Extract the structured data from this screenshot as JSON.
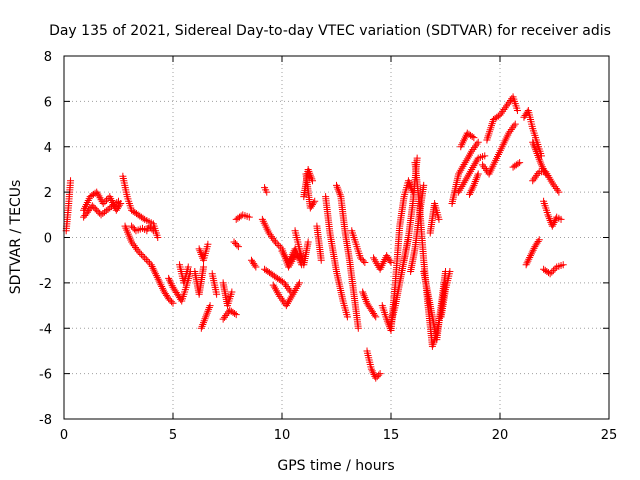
{
  "chart_data": {
    "type": "scatter",
    "title": "Day 135 of 2021, Sidereal Day-to-day VTEC variation (SDTVAR) for receiver adis",
    "xlabel": "GPS time / hours",
    "ylabel": "SDTVAR / TECUs",
    "xlim": [
      0,
      25
    ],
    "ylim": [
      -8,
      8
    ],
    "xticks": [
      0,
      5,
      10,
      15,
      20,
      25
    ],
    "yticks": [
      -8,
      -6,
      -4,
      -2,
      0,
      2,
      4,
      6,
      8
    ],
    "grid": true,
    "marker": "+",
    "color": "#ff0000",
    "series": [
      {
        "name": "SDTVAR",
        "segments": [
          {
            "x": [
              0.1,
              0.2,
              0.3
            ],
            "y": [
              0.3,
              1.3,
              2.5
            ]
          },
          {
            "x": [
              0.9,
              1.2,
              1.5,
              1.8,
              2.1,
              2.4,
              2.6
            ],
            "y": [
              1.2,
              1.8,
              2.0,
              1.5,
              1.8,
              1.2,
              1.5
            ]
          },
          {
            "x": [
              0.9,
              1.3,
              1.7,
              2.1,
              2.5
            ],
            "y": [
              0.9,
              1.4,
              1.0,
              1.3,
              1.6
            ]
          },
          {
            "x": [
              2.7,
              2.9,
              3.1,
              3.4,
              3.7,
              3.9,
              4.1,
              4.3
            ],
            "y": [
              2.7,
              1.8,
              1.2,
              1.0,
              0.8,
              0.7,
              0.6,
              0.0
            ]
          },
          {
            "x": [
              2.8,
              3.1,
              3.4,
              3.7,
              4.0,
              4.2,
              4.4,
              4.6,
              4.8,
              5.0
            ],
            "y": [
              0.5,
              -0.2,
              -0.6,
              -0.9,
              -1.2,
              -1.6,
              -2.0,
              -2.4,
              -2.7,
              -2.9
            ]
          },
          {
            "x": [
              3.1,
              3.3,
              3.6,
              3.8,
              3.9,
              4.1
            ],
            "y": [
              0.5,
              0.3,
              0.4,
              0.3,
              0.5,
              0.3
            ]
          },
          {
            "x": [
              4.8,
              5.0,
              5.2,
              5.4,
              5.6,
              5.8
            ],
            "y": [
              -1.8,
              -2.2,
              -2.5,
              -2.8,
              -2.2,
              -1.5
            ]
          },
          {
            "x": [
              5.3,
              5.5,
              5.7
            ],
            "y": [
              -1.2,
              -2.0,
              -1.3
            ]
          },
          {
            "x": [
              6.0,
              6.2,
              6.4
            ],
            "y": [
              -1.5,
              -2.5,
              -1.3
            ]
          },
          {
            "x": [
              6.2,
              6.4,
              6.6
            ],
            "y": [
              -0.5,
              -1.0,
              -0.3
            ]
          },
          {
            "x": [
              6.3,
              6.5,
              6.7
            ],
            "y": [
              -4.0,
              -3.5,
              -3.0
            ]
          },
          {
            "x": [
              6.8,
              7.0
            ],
            "y": [
              -1.6,
              -2.5
            ]
          },
          {
            "x": [
              7.3,
              7.5,
              7.7
            ],
            "y": [
              -2.0,
              -3.0,
              -2.4
            ]
          },
          {
            "x": [
              7.3,
              7.6,
              7.9
            ],
            "y": [
              -3.6,
              -3.2,
              -3.4
            ]
          },
          {
            "x": [
              7.8,
              8.0
            ],
            "y": [
              -0.2,
              -0.4
            ]
          },
          {
            "x": [
              7.9,
              8.2,
              8.5
            ],
            "y": [
              0.8,
              1.0,
              0.9
            ]
          },
          {
            "x": [
              8.6,
              8.8
            ],
            "y": [
              -1.0,
              -1.3
            ]
          },
          {
            "x": [
              9.2,
              9.3
            ],
            "y": [
              2.2,
              2.0
            ]
          },
          {
            "x": [
              9.1,
              9.4,
              9.7,
              10.0,
              10.3,
              10.6,
              10.9
            ],
            "y": [
              0.8,
              0.2,
              -0.2,
              -0.5,
              -1.3,
              -0.8,
              -0.9
            ]
          },
          {
            "x": [
              9.2,
              9.5,
              9.8,
              10.1,
              10.4
            ],
            "y": [
              -1.4,
              -1.6,
              -1.8,
              -2.0,
              -2.4
            ]
          },
          {
            "x": [
              9.6,
              9.9,
              10.2,
              10.5,
              10.8
            ],
            "y": [
              -2.1,
              -2.6,
              -3.0,
              -2.5,
              -2.0
            ]
          },
          {
            "x": [
              10.0,
              10.3,
              10.6,
              10.9
            ],
            "y": [
              -0.6,
              -1.1,
              -0.5,
              -1.2
            ]
          },
          {
            "x": [
              10.6,
              10.8,
              11.0,
              11.2
            ],
            "y": [
              0.3,
              -0.5,
              -1.2,
              -0.2
            ]
          },
          {
            "x": [
              11.0,
              11.2,
              11.4
            ],
            "y": [
              1.8,
              3.0,
              2.5
            ]
          },
          {
            "x": [
              11.1,
              11.3,
              11.5
            ],
            "y": [
              2.8,
              1.3,
              1.6
            ]
          },
          {
            "x": [
              11.6,
              11.8
            ],
            "y": [
              0.5,
              -1.0
            ]
          },
          {
            "x": [
              12.0,
              12.2,
              12.5,
              12.8,
              13.0
            ],
            "y": [
              1.8,
              0.2,
              -1.5,
              -2.8,
              -3.5
            ]
          },
          {
            "x": [
              12.5,
              12.7,
              12.9,
              13.1,
              13.3,
              13.5
            ],
            "y": [
              2.3,
              1.8,
              0.2,
              -1.0,
              -2.5,
              -4.0
            ]
          },
          {
            "x": [
              13.2,
              13.4,
              13.6,
              13.8
            ],
            "y": [
              0.3,
              -0.3,
              -0.9,
              -1.1
            ]
          },
          {
            "x": [
              13.7,
              13.9,
              14.1,
              14.3
            ],
            "y": [
              -2.4,
              -2.9,
              -3.2,
              -3.5
            ]
          },
          {
            "x": [
              13.9,
              14.1,
              14.3,
              14.5
            ],
            "y": [
              -5.0,
              -5.8,
              -6.2,
              -6.0
            ]
          },
          {
            "x": [
              14.2,
              14.5,
              14.8,
              15.0
            ],
            "y": [
              -0.9,
              -1.4,
              -0.8,
              -1.1
            ]
          },
          {
            "x": [
              14.6,
              14.8,
              15.0,
              15.2,
              15.4,
              15.6,
              15.8,
              16.0
            ],
            "y": [
              -3.0,
              -3.6,
              -4.1,
              -2.0,
              0.5,
              1.8,
              2.5,
              2.0
            ]
          },
          {
            "x": [
              15.0,
              15.2,
              15.4,
              15.6,
              15.8
            ],
            "y": [
              -3.8,
              -3.0,
              -2.0,
              -1.0,
              0.0
            ]
          },
          {
            "x": [
              15.6,
              15.8,
              16.0,
              16.2
            ],
            "y": [
              -1.0,
              0.0,
              1.5,
              3.5
            ]
          },
          {
            "x": [
              15.9,
              16.1,
              16.3,
              16.5
            ],
            "y": [
              -1.5,
              -0.5,
              1.0,
              2.3
            ]
          },
          {
            "x": [
              16.1,
              16.3,
              16.5,
              16.7,
              16.9,
              17.1,
              17.3,
              17.5
            ],
            "y": [
              3.3,
              1.5,
              -1.0,
              -3.0,
              -4.8,
              -4.2,
              -3.2,
              -2.0
            ]
          },
          {
            "x": [
              16.5,
              16.7,
              16.9,
              17.1,
              17.3,
              17.5
            ],
            "y": [
              -1.5,
              -2.5,
              -3.5,
              -4.5,
              -3.0,
              -1.5
            ]
          },
          {
            "x": [
              16.8,
              17.0,
              17.2
            ],
            "y": [
              0.2,
              1.5,
              0.8
            ]
          },
          {
            "x": [
              17.3,
              17.5,
              17.7
            ],
            "y": [
              -3.5,
              -2.3,
              -1.5
            ]
          },
          {
            "x": [
              17.8,
              18.1,
              18.4,
              18.7,
              19.0
            ],
            "y": [
              1.5,
              2.8,
              3.3,
              3.8,
              4.2
            ]
          },
          {
            "x": [
              18.1,
              18.4,
              18.7,
              19.0,
              19.3
            ],
            "y": [
              2.0,
              2.5,
              3.0,
              3.5,
              3.6
            ]
          },
          {
            "x": [
              18.2,
              18.5,
              18.8
            ],
            "y": [
              4.0,
              4.6,
              4.4
            ]
          },
          {
            "x": [
              18.6,
              18.8,
              19.0
            ],
            "y": [
              1.9,
              2.3,
              2.8
            ]
          },
          {
            "x": [
              19.2,
              19.5,
              19.8,
              20.1,
              20.4,
              20.7
            ],
            "y": [
              3.2,
              2.8,
              3.4,
              4.0,
              4.6,
              5.0
            ]
          },
          {
            "x": [
              19.4,
              19.7,
              20.0,
              20.3,
              20.6,
              20.8
            ],
            "y": [
              4.3,
              5.2,
              5.4,
              5.8,
              6.2,
              5.6
            ]
          },
          {
            "x": [
              20.6,
              20.9
            ],
            "y": [
              3.1,
              3.3
            ]
          },
          {
            "x": [
              21.1,
              21.3,
              21.5,
              21.7,
              21.9
            ],
            "y": [
              5.3,
              5.6,
              4.8,
              4.2,
              3.6
            ]
          },
          {
            "x": [
              21.5,
              21.7,
              21.9,
              22.1
            ],
            "y": [
              4.2,
              3.7,
              3.2,
              2.8
            ]
          },
          {
            "x": [
              21.2,
              21.4,
              21.6,
              21.8
            ],
            "y": [
              -1.2,
              -0.8,
              -0.4,
              -0.1
            ]
          },
          {
            "x": [
              21.5,
              21.8,
              22.1,
              22.4,
              22.7
            ],
            "y": [
              2.5,
              2.9,
              2.9,
              2.4,
              2.0
            ]
          },
          {
            "x": [
              22.0,
              22.2,
              22.4,
              22.6,
              22.8
            ],
            "y": [
              1.6,
              1.0,
              0.5,
              0.9,
              0.8
            ]
          },
          {
            "x": [
              22.0,
              22.3,
              22.6,
              22.9
            ],
            "y": [
              -1.4,
              -1.6,
              -1.3,
              -1.2
            ]
          }
        ]
      }
    ]
  }
}
